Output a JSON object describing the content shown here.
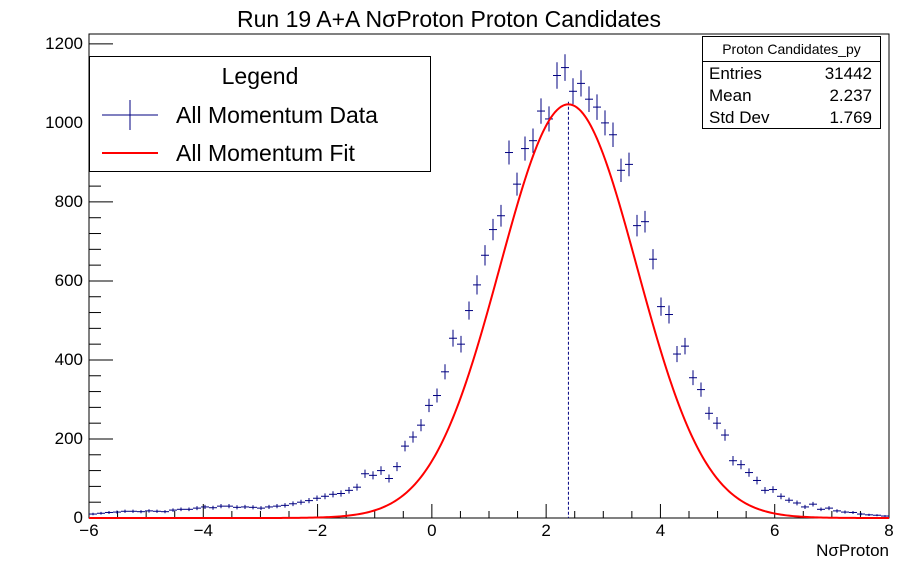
{
  "chart_data": {
    "type": "histogram",
    "title": "Run 19 A+A NσProton Proton Candidates",
    "xlabel": "NσProton",
    "ylabel": "",
    "xlim": [
      -6,
      8
    ],
    "ylim": [
      0,
      1225
    ],
    "x_ticks": [
      "−6",
      "−4",
      "−2",
      "0",
      "2",
      "4",
      "6",
      "8"
    ],
    "y_ticks": [
      "0",
      "200",
      "400",
      "600",
      "800",
      "1000",
      "1200"
    ],
    "bin_width": 0.14,
    "series": [
      {
        "name": "All Momentum Data",
        "color": "#000080",
        "style": "error-cross",
        "x": [
          -5.93,
          -5.79,
          -5.65,
          -5.51,
          -5.37,
          -5.23,
          -5.09,
          -4.95,
          -4.81,
          -4.67,
          -4.53,
          -4.39,
          -4.25,
          -4.11,
          -3.97,
          -3.83,
          -3.69,
          -3.55,
          -3.41,
          -3.27,
          -3.13,
          -2.99,
          -2.85,
          -2.71,
          -2.57,
          -2.43,
          -2.29,
          -2.15,
          -2.01,
          -1.87,
          -1.73,
          -1.59,
          -1.45,
          -1.31,
          -1.17,
          -1.03,
          -0.89,
          -0.75,
          -0.61,
          -0.47,
          -0.33,
          -0.19,
          -0.05,
          0.09,
          0.23,
          0.37,
          0.51,
          0.65,
          0.79,
          0.93,
          1.07,
          1.21,
          1.35,
          1.49,
          1.63,
          1.77,
          1.91,
          2.05,
          2.19,
          2.33,
          2.47,
          2.61,
          2.75,
          2.89,
          3.03,
          3.17,
          3.31,
          3.45,
          3.59,
          3.73,
          3.87,
          4.01,
          4.15,
          4.29,
          4.43,
          4.57,
          4.71,
          4.85,
          4.99,
          5.13,
          5.27,
          5.41,
          5.55,
          5.69,
          5.83,
          5.97,
          6.11,
          6.25,
          6.39,
          6.53,
          6.67,
          6.81,
          6.95,
          7.09,
          7.23,
          7.37,
          7.51,
          7.65,
          7.79,
          7.93
        ],
        "y": [
          10,
          12,
          14,
          15,
          17,
          17,
          16,
          18,
          17,
          16,
          20,
          22,
          22,
          25,
          28,
          26,
          30,
          30,
          27,
          28,
          27,
          25,
          28,
          30,
          32,
          36,
          40,
          44,
          50,
          55,
          60,
          62,
          70,
          78,
          112,
          108,
          120,
          100,
          130,
          182,
          205,
          235,
          285,
          310,
          370,
          455,
          440,
          525,
          590,
          665,
          730,
          765,
          925,
          845,
          935,
          955,
          1030,
          1010,
          1120,
          1140,
          1080,
          1100,
          1060,
          1040,
          1000,
          970,
          880,
          895,
          740,
          750,
          655,
          535,
          515,
          415,
          435,
          355,
          325,
          265,
          240,
          210,
          145,
          135,
          115,
          95,
          70,
          72,
          55,
          45,
          38,
          28,
          35,
          22,
          25,
          18,
          15,
          14,
          10,
          8,
          7,
          5
        ]
      },
      {
        "name": "All Momentum Fit",
        "color": "#ff0000",
        "style": "line",
        "model": "gaussian",
        "amplitude": 1047,
        "mean": 2.39,
        "sigma": 1.2,
        "x_range": [
          -6,
          8
        ]
      }
    ],
    "marker_line": {
      "x": 2.39,
      "color": "#000080",
      "style": "dashed"
    }
  },
  "stats_box": {
    "title": "Proton Candidates_py",
    "rows": [
      {
        "label": "Entries",
        "value": "31442"
      },
      {
        "label": "Mean",
        "value": "2.237"
      },
      {
        "label": "Std Dev",
        "value": "1.769"
      }
    ]
  },
  "legend": {
    "header": "Legend",
    "entries": [
      {
        "label": "All Momentum Data",
        "icon": "error-cross-icon",
        "color": "#000080"
      },
      {
        "label": "All Momentum Fit",
        "icon": "line-icon",
        "color": "#ff0000"
      }
    ]
  }
}
